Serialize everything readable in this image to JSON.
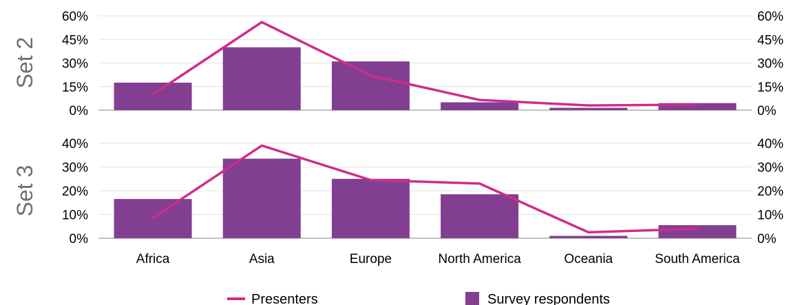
{
  "chart_data": {
    "type": "bar",
    "categories": [
      "Africa",
      "Asia",
      "Europe",
      "North America",
      "Oceania",
      "South America"
    ],
    "panels": [
      {
        "label": "Set 2",
        "ylim": [
          0,
          60
        ],
        "yticks": [
          "0%",
          "15%",
          "30%",
          "45%",
          "60%"
        ],
        "bars": [
          17.5,
          40,
          31,
          5,
          1.5,
          4.5
        ],
        "line": [
          10,
          56,
          22,
          6.5,
          3,
          3.5
        ]
      },
      {
        "label": "Set 3",
        "ylim": [
          0,
          40
        ],
        "yticks": [
          "0%",
          "10%",
          "20%",
          "30%",
          "40%"
        ],
        "bars": [
          16.5,
          33.5,
          25,
          18.5,
          1,
          5.5
        ],
        "line": [
          8.5,
          39,
          24.5,
          23,
          2.5,
          4
        ]
      }
    ],
    "series": [
      {
        "name": "Presenters",
        "kind": "line",
        "color": "#d02c89"
      },
      {
        "name": "Survey respondents",
        "kind": "bar",
        "color": "#823f91"
      }
    ],
    "legend_position": "bottom",
    "grid": true
  }
}
